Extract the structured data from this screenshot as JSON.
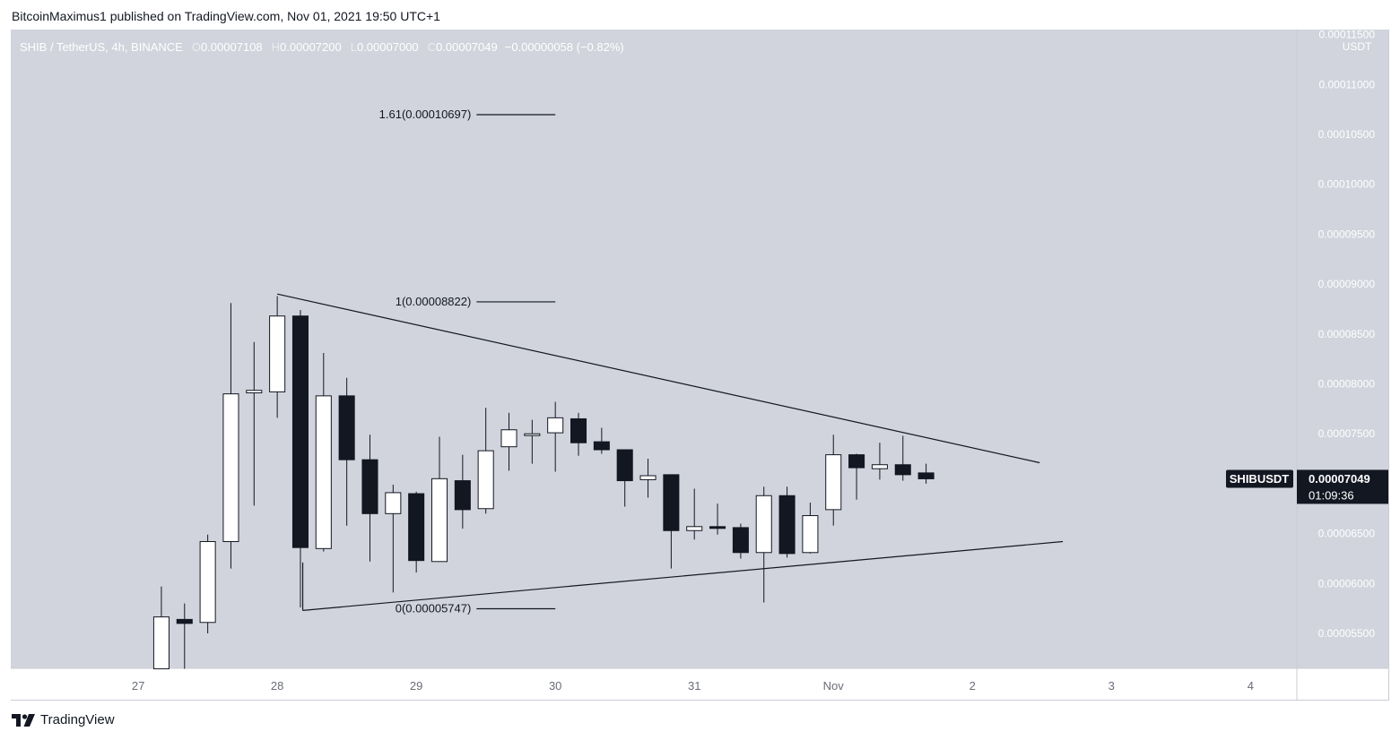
{
  "header": {
    "publisher": "BitcoinMaximus1 published on TradingView.com, Nov 01, 2021 19:50 UTC+1"
  },
  "legend": {
    "symbol": "SHIB / TetherUS, 4h, BINANCE",
    "o_label": "O",
    "o_value": "0.00007108",
    "h_label": "H",
    "h_value": "0.00007200",
    "l_label": "L",
    "l_value": "0.00007000",
    "c_label": "C",
    "c_value": "0.00007049",
    "change": "−0.00000058 (−0.82%)"
  },
  "price_tag": {
    "symbol": "SHIBUSDT",
    "price": "0.00007049",
    "countdown": "01:09:36"
  },
  "brand": {
    "name": "TradingView"
  },
  "colors": {
    "plot_bg": "#d1d4dc",
    "axis_bg": "#d1d4dc",
    "bull": "#ffffff",
    "bear": "#131722",
    "line": "#131722",
    "tag_bg": "#131722"
  },
  "chart_data": {
    "type": "candlestick",
    "currency_label": "USDT",
    "y_ticks": [
      "0.00011500",
      "0.00011000",
      "0.00010500",
      "0.00010000",
      "0.00009500",
      "0.00009000",
      "0.00008500",
      "0.00008000",
      "0.00007500",
      "0.00007000",
      "0.00006500",
      "0.00006000",
      "0.00005500"
    ],
    "ylim": [
      5.15e-05,
      0.0001155
    ],
    "x_ticks": [
      {
        "label": "27",
        "t": 0
      },
      {
        "label": "28",
        "t": 6
      },
      {
        "label": "29",
        "t": 12
      },
      {
        "label": "30",
        "t": 18
      },
      {
        "label": "31",
        "t": 24
      },
      {
        "label": "Nov",
        "t": 30
      },
      {
        "label": "2",
        "t": 36
      },
      {
        "label": "3",
        "t": 42
      },
      {
        "label": "4",
        "t": 48
      }
    ],
    "xlim": [
      -5.5,
      50.0
    ],
    "candles": [
      {
        "t": 1,
        "o": 5.145e-05,
        "h": 5.97e-05,
        "l": 5.145e-05,
        "c": 5.665e-05
      },
      {
        "t": 2,
        "o": 5.64e-05,
        "h": 5.8e-05,
        "l": 5.145e-05,
        "c": 5.6e-05
      },
      {
        "t": 3,
        "o": 5.61e-05,
        "h": 6.49e-05,
        "l": 5.5e-05,
        "c": 6.42e-05
      },
      {
        "t": 4,
        "o": 6.42e-05,
        "h": 8.81e-05,
        "l": 6.15e-05,
        "c": 7.9e-05
      },
      {
        "t": 5,
        "o": 7.91e-05,
        "h": 8.42e-05,
        "l": 6.78e-05,
        "c": 7.935e-05
      },
      {
        "t": 6,
        "o": 7.92e-05,
        "h": 8.88e-05,
        "l": 7.66e-05,
        "c": 8.68e-05
      },
      {
        "t": 7,
        "o": 8.68e-05,
        "h": 8.74e-05,
        "l": 5.76e-05,
        "c": 6.36e-05
      },
      {
        "t": 8,
        "o": 6.35e-05,
        "h": 8.31e-05,
        "l": 6.32e-05,
        "c": 7.88e-05
      },
      {
        "t": 9,
        "o": 7.88e-05,
        "h": 8.06e-05,
        "l": 6.58e-05,
        "c": 7.24e-05
      },
      {
        "t": 10,
        "o": 7.24e-05,
        "h": 7.49e-05,
        "l": 6.22e-05,
        "c": 6.7e-05
      },
      {
        "t": 11,
        "o": 6.7e-05,
        "h": 6.99e-05,
        "l": 5.91e-05,
        "c": 6.91e-05
      },
      {
        "t": 12,
        "o": 6.9e-05,
        "h": 6.92e-05,
        "l": 6.11e-05,
        "c": 6.23e-05
      },
      {
        "t": 13,
        "o": 6.22e-05,
        "h": 7.47e-05,
        "l": 6.22e-05,
        "c": 7.05e-05
      },
      {
        "t": 14,
        "o": 7.03e-05,
        "h": 7.29e-05,
        "l": 6.55e-05,
        "c": 6.74e-05
      },
      {
        "t": 15,
        "o": 6.75e-05,
        "h": 7.76e-05,
        "l": 6.7e-05,
        "c": 7.33e-05
      },
      {
        "t": 16,
        "o": 7.37e-05,
        "h": 7.71e-05,
        "l": 7.13e-05,
        "c": 7.54e-05
      },
      {
        "t": 17,
        "o": 7.5e-05,
        "h": 7.64e-05,
        "l": 7.2e-05,
        "c": 7.5e-05
      },
      {
        "t": 18,
        "o": 7.51e-05,
        "h": 7.82e-05,
        "l": 7.12e-05,
        "c": 7.66e-05
      },
      {
        "t": 19,
        "o": 7.65e-05,
        "h": 7.71e-05,
        "l": 7.28e-05,
        "c": 7.41e-05
      },
      {
        "t": 20,
        "o": 7.42e-05,
        "h": 7.56e-05,
        "l": 7.3e-05,
        "c": 7.34e-05
      },
      {
        "t": 21,
        "o": 7.34e-05,
        "h": 7.34e-05,
        "l": 6.77e-05,
        "c": 7.03e-05
      },
      {
        "t": 22,
        "o": 7.04e-05,
        "h": 7.25e-05,
        "l": 6.86e-05,
        "c": 7.08e-05
      },
      {
        "t": 23,
        "o": 7.09e-05,
        "h": 7.09e-05,
        "l": 6.15e-05,
        "c": 6.53e-05
      },
      {
        "t": 24,
        "o": 6.53e-05,
        "h": 6.95e-05,
        "l": 6.44e-05,
        "c": 6.57e-05
      },
      {
        "t": 25,
        "o": 6.57e-05,
        "h": 6.8e-05,
        "l": 6.49e-05,
        "c": 6.56e-05
      },
      {
        "t": 26,
        "o": 6.56e-05,
        "h": 6.6e-05,
        "l": 6.25e-05,
        "c": 6.31e-05
      },
      {
        "t": 27,
        "o": 6.31e-05,
        "h": 6.97e-05,
        "l": 5.81e-05,
        "c": 6.88e-05
      },
      {
        "t": 28,
        "o": 6.88e-05,
        "h": 6.97e-05,
        "l": 6.26e-05,
        "c": 6.3e-05
      },
      {
        "t": 29,
        "o": 6.31e-05,
        "h": 6.81e-05,
        "l": 6.3e-05,
        "c": 6.68e-05
      },
      {
        "t": 30,
        "o": 6.74e-05,
        "h": 7.49e-05,
        "l": 6.58e-05,
        "c": 7.29e-05
      },
      {
        "t": 31,
        "o": 7.29e-05,
        "h": 7.3e-05,
        "l": 6.84e-05,
        "c": 7.16e-05
      },
      {
        "t": 32,
        "o": 7.15e-05,
        "h": 7.41e-05,
        "l": 7.04e-05,
        "c": 7.19e-05
      },
      {
        "t": 33,
        "o": 7.19e-05,
        "h": 7.48e-05,
        "l": 7.03e-05,
        "c": 7.09e-05
      },
      {
        "t": 34,
        "o": 7.108e-05,
        "h": 7.2e-05,
        "l": 7e-05,
        "c": 7.049e-05
      }
    ],
    "trendlines": [
      {
        "name": "resistance",
        "points": [
          {
            "t": 6.0,
            "p": 8.9e-05
          },
          {
            "t": 38.9,
            "p": 7.21e-05
          }
        ]
      },
      {
        "name": "support",
        "points": [
          {
            "t": 7.1,
            "p": 5.73e-05
          },
          {
            "t": 39.9,
            "p": 6.42e-05
          }
        ]
      }
    ],
    "fib_levels": [
      {
        "label": "1.61(0.00010697)",
        "ratio": "1.61",
        "value": 0.00010697
      },
      {
        "label": "1(0.00008822)",
        "ratio": "1",
        "value": 8.822e-05
      },
      {
        "label": "0(0.00005747)",
        "ratio": "0",
        "value": 5.747e-05
      }
    ],
    "fib_range_t": [
      14.6,
      18.0
    ],
    "last_price": 7.049e-05,
    "annotations": [
      "SHIBUSDT",
      "0.00007049",
      "01:09:36"
    ]
  }
}
